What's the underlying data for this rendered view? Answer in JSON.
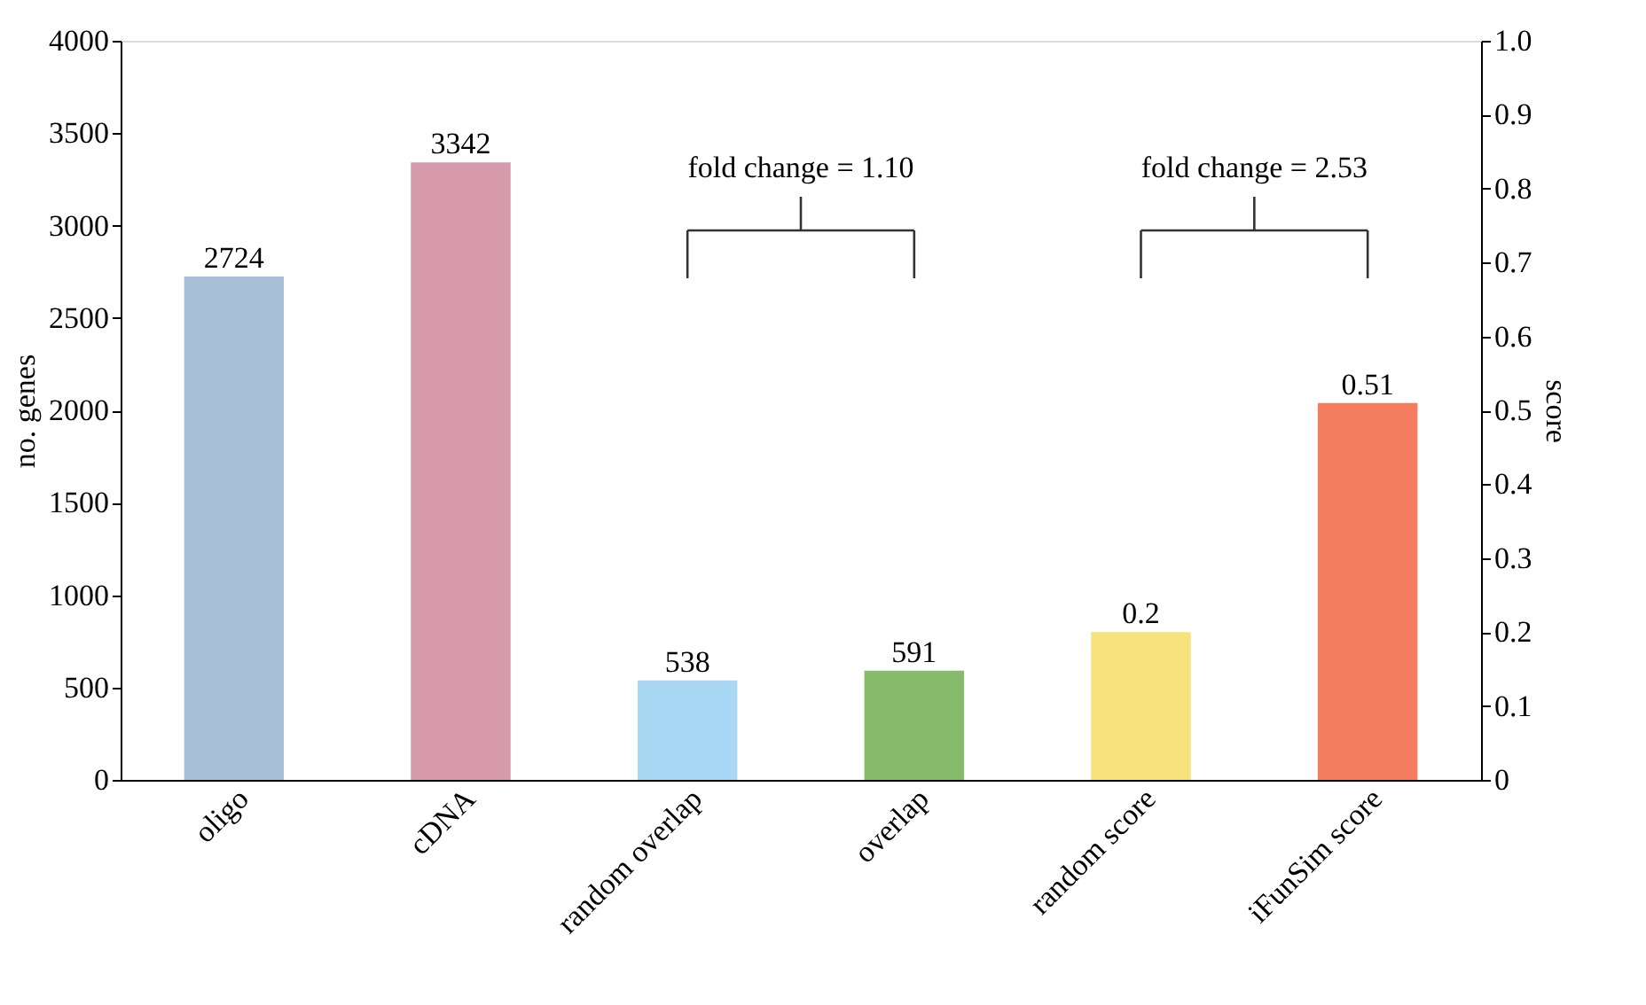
{
  "chart_data": {
    "type": "bar",
    "ylabel": "no. genes",
    "y2label": "score",
    "categories": [
      "oligo",
      "cDNA",
      "random overlap",
      "overlap",
      "random score",
      "iFunSim score"
    ],
    "series": [
      {
        "values": [
          2724,
          3342,
          538,
          591,
          null,
          null
        ],
        "colors": [
          "#a7c0d8",
          "#d79aab",
          "#a8d8f3",
          "#86bb6c",
          "#f7e27c",
          "#f47c5f"
        ]
      },
      {
        "axis": "y2",
        "values": [
          null,
          null,
          null,
          null,
          0.2,
          0.51
        ],
        "colors": [
          "#a7c0d8",
          "#d79aab",
          "#a8d8f3",
          "#86bb6c",
          "#f7e27c",
          "#f47c5f"
        ]
      }
    ],
    "ylim": [
      0,
      4000
    ],
    "yticks": [
      0,
      500,
      1000,
      1500,
      2000,
      2500,
      3000,
      3500,
      4000
    ],
    "y2lim": [
      0,
      1
    ],
    "y2ticks": [
      0,
      0.1,
      0.2,
      0.3,
      0.4,
      0.5,
      0.6,
      0.7,
      0.8,
      0.9,
      {
        "value": 1,
        "label": "1.0"
      }
    ],
    "annotations": [
      "fold change = 1.10",
      "fold change = 2.53"
    ],
    "data_labels": true,
    "grid": false
  }
}
